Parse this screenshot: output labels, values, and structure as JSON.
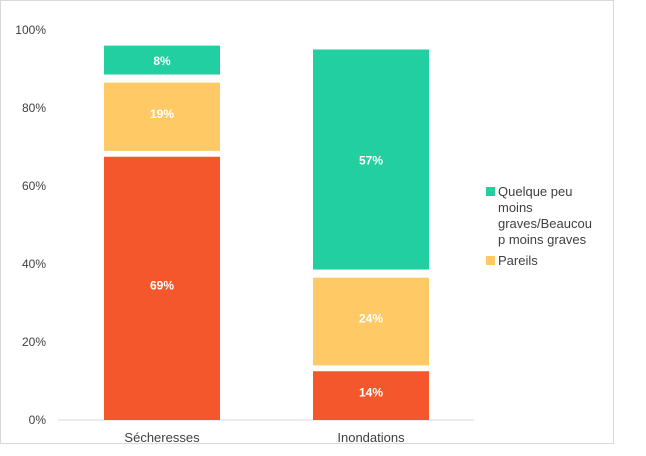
{
  "chart_data": {
    "type": "bar",
    "stacked": true,
    "categories": [
      "Sécheresses",
      "Inondations"
    ],
    "series": [
      {
        "name": "",
        "color": "#F4572B",
        "values": [
          69,
          14
        ],
        "labels": [
          "69%",
          "14%"
        ]
      },
      {
        "name": "Pareils",
        "color": "#FFC966",
        "values": [
          19,
          24
        ],
        "labels": [
          "19%",
          "24%"
        ]
      },
      {
        "name": "Quelque peu moins graves/Beaucoup moins graves",
        "color": "#22CFA0",
        "values": [
          8,
          57
        ],
        "labels": [
          "8%",
          "57%"
        ]
      }
    ],
    "ylim": [
      0,
      100
    ],
    "yticks": [
      "0%",
      "20%",
      "40%",
      "60%",
      "80%",
      "100%"
    ],
    "legend": {
      "position": "right",
      "entries": [
        {
          "lines": [
            "Quelque peu",
            "moins",
            "graves/Beaucou",
            "p moins graves"
          ],
          "color": "#22CFA0"
        },
        {
          "lines": [
            "Pareils"
          ],
          "color": "#FFC966"
        }
      ]
    },
    "grid": false
  }
}
